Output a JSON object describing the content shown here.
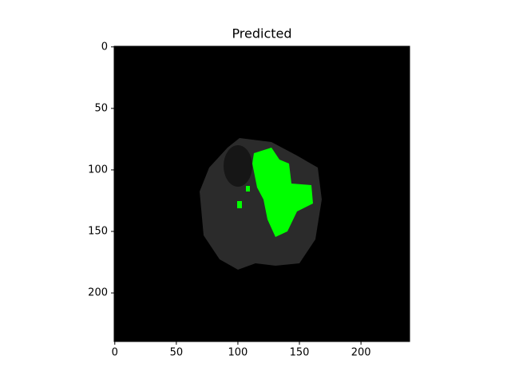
{
  "chart_data": {
    "type": "image",
    "title": "Predicted",
    "xlim": [
      -0.5,
      239.5
    ],
    "ylim": [
      -0.5,
      239.5
    ],
    "y_inverted": true,
    "xticks": [
      0,
      50,
      100,
      150,
      200
    ],
    "yticks": [
      0,
      50,
      100,
      150,
      200
    ]
  }
}
